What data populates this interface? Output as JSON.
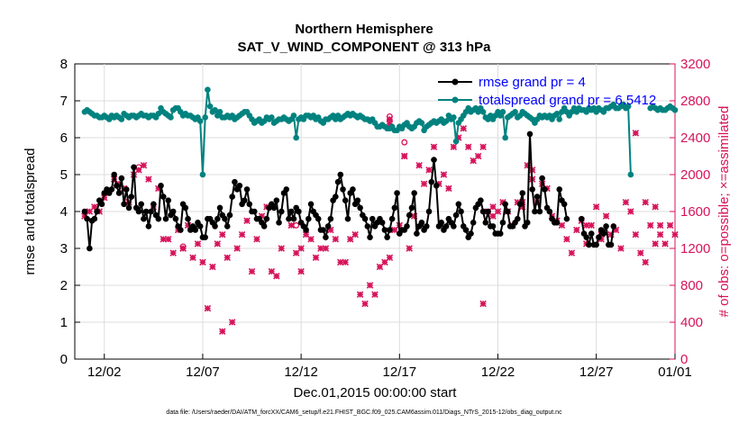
{
  "chart_data": {
    "type": "line",
    "title_line1": "Northern Hemisphere",
    "title_line2": "SAT_V_WIND_COMPONENT @ 313 hPa",
    "xlabel": "Dec.01,2015 00:00:00 start",
    "ylabel_left": "rmse and totalspread",
    "ylabel_right": "# of obs: o=possible; ×=assimilated",
    "footnote": "data file: /Users/raeder/DAI/ATM_forcXX/CAM6_setup/f.e21.FHIST_BGC.f09_025.CAM6assim.011/Diags_NTrS_2015-12/obs_diag_output.nc",
    "xlim": [
      0.5,
      31.0
    ],
    "ylim_left": [
      0,
      8
    ],
    "ylim_right": [
      0,
      3200
    ],
    "x_tick_values": [
      2,
      7,
      12,
      17,
      22,
      27,
      32
    ],
    "x_tick_labels": [
      "12/02",
      "12/07",
      "12/12",
      "12/17",
      "12/22",
      "12/27",
      "01/01"
    ],
    "y_left_ticks": [
      0,
      1,
      2,
      3,
      4,
      5,
      6,
      7,
      8
    ],
    "y_right_ticks": [
      0,
      400,
      800,
      1200,
      1600,
      2000,
      2400,
      2800,
      3200
    ],
    "colors": {
      "rmse": "#000000",
      "spread": "#00827f",
      "obs": "#d6135a",
      "legend_text": "#0000ff",
      "right_axis": "#d6135a"
    },
    "legend": [
      {
        "label": "rmse grand pr = 4",
        "series": "rmse"
      },
      {
        "label": "totalspread grand pr = 6.5412",
        "series": "spread"
      }
    ],
    "series": [
      {
        "name": "rmse",
        "values": [
          4.0,
          3.8,
          3.0,
          3.75,
          3.8,
          4.0,
          4.3,
          4.2,
          4.5,
          4.6,
          4.5,
          4.6,
          5.0,
          4.7,
          4.5,
          4.9,
          4.2,
          4.6,
          4.1,
          4.4,
          5.2,
          4.1,
          4.0,
          4.2,
          3.8,
          4.0,
          3.6,
          4.0,
          4.2,
          3.9,
          3.8,
          4.7,
          4.4,
          3.8,
          4.3,
          3.9,
          4.0,
          3.8,
          3.6,
          3.5,
          4.2,
          4.1,
          3.8,
          3.5,
          3.6,
          3.5,
          3.7,
          3.6,
          3.3,
          3.3,
          3.8,
          3.8,
          3.7,
          3.6,
          3.8,
          4.1,
          3.9,
          3.8,
          3.6,
          3.9,
          4.4,
          4.8,
          4.6,
          4.7,
          4.2,
          4.3,
          4.6,
          4.2,
          4.0,
          4.0,
          3.8,
          3.8,
          3.7,
          3.6,
          3.8,
          4.1,
          4.2,
          4.1,
          4.3,
          3.7,
          4.0,
          4.5,
          4.6,
          3.8,
          4.0,
          3.8,
          4.1,
          4.0,
          3.7,
          3.6,
          3.5,
          3.8,
          4.2,
          4.0,
          3.9,
          3.8,
          3.5,
          3.5,
          3.3,
          3.6,
          3.8,
          4.3,
          4.4,
          4.8,
          5.0,
          4.6,
          4.3,
          3.8,
          4.5,
          4.6,
          4.2,
          4.3,
          4.1,
          3.9,
          3.8,
          3.6,
          3.3,
          3.8,
          3.6,
          3.7,
          3.8,
          3.7,
          3.5,
          3.3,
          3.5,
          3.8,
          4.1,
          4.5,
          3.4,
          3.5,
          3.5,
          3.6,
          3.9,
          4.1,
          4.5,
          3.4,
          3.6,
          3.7,
          3.5,
          3.6,
          4.0,
          4.8,
          5.4,
          4.7,
          3.6,
          3.7,
          3.5,
          3.6,
          3.8,
          3.7,
          3.6,
          3.9,
          4.2,
          4.0,
          3.6,
          3.5,
          3.3,
          3.4,
          3.7,
          4.1,
          4.2,
          4.3,
          4.0,
          3.7,
          4.0,
          3.6,
          3.6,
          3.4,
          3.4,
          3.4,
          3.7,
          4.2,
          4.0,
          3.6,
          3.6,
          3.7,
          3.8,
          4.2,
          4.5,
          3.6,
          3.7,
          6.1,
          4.6,
          4.0,
          4.4,
          4.0,
          4.9,
          4.6,
          4.1,
          4.0,
          3.8,
          3.7,
          3.7,
          4.6,
          4.3,
          4.2,
          3.8,
          null,
          null,
          null,
          null,
          null,
          3.8,
          3.4,
          3.3,
          3.1,
          3.4,
          3.1,
          3.1,
          3.3,
          3.5,
          3.4,
          3.6,
          3.1,
          3.1,
          3.6
        ],
        "x_start": 1.0,
        "x_step": 0.125
      },
      {
        "name": "spread",
        "values": [
          6.7,
          6.75,
          6.7,
          6.65,
          6.6,
          6.6,
          6.55,
          6.55,
          6.6,
          6.55,
          6.5,
          6.6,
          6.55,
          6.6,
          6.55,
          6.5,
          6.65,
          6.6,
          6.55,
          6.6,
          6.6,
          6.55,
          6.6,
          6.65,
          6.6,
          6.6,
          6.55,
          6.6,
          6.6,
          6.55,
          6.65,
          6.8,
          6.7,
          6.65,
          6.6,
          6.55,
          6.75,
          6.8,
          6.8,
          6.7,
          6.6,
          6.65,
          6.6,
          6.6,
          6.55,
          6.5,
          6.55,
          6.45,
          5.0,
          6.55,
          7.3,
          6.85,
          6.7,
          6.75,
          6.6,
          6.7,
          6.55,
          6.55,
          6.6,
          6.55,
          6.6,
          6.5,
          6.55,
          6.6,
          6.65,
          6.7,
          6.7,
          6.6,
          6.5,
          6.4,
          6.45,
          6.5,
          6.4,
          6.45,
          6.55,
          6.5,
          6.55,
          6.4,
          6.45,
          6.5,
          6.5,
          6.55,
          6.5,
          6.45,
          6.5,
          6.6,
          6.0,
          6.5,
          6.55,
          6.5,
          6.6,
          6.6,
          6.55,
          6.6,
          6.5,
          6.55,
          6.45,
          6.4,
          6.5,
          6.5,
          6.55,
          6.6,
          6.5,
          6.6,
          6.5,
          6.55,
          6.6,
          6.65,
          6.6,
          6.65,
          6.6,
          6.55,
          6.6,
          6.55,
          6.5,
          6.5,
          6.45,
          6.5,
          6.4,
          6.3,
          6.3,
          6.35,
          6.3,
          6.25,
          6.25,
          6.3,
          6.2,
          6.2,
          6.3,
          6.25,
          6.35,
          6.4,
          6.3,
          6.25,
          6.3,
          6.4,
          6.45,
          6.4,
          6.2,
          6.3,
          6.35,
          6.4,
          6.45,
          6.4,
          6.45,
          6.5,
          6.4,
          6.45,
          6.6,
          6.5,
          6.55,
          5.9,
          6.4,
          6.5,
          6.6,
          6.7,
          6.8,
          6.7,
          6.75,
          6.8,
          6.7,
          6.8,
          6.7,
          6.55,
          6.5,
          6.6,
          6.5,
          6.6,
          6.7,
          6.6,
          6.7,
          6.0,
          6.55,
          6.6,
          6.65,
          6.7,
          6.55,
          6.6,
          6.7,
          6.65,
          6.6,
          6.55,
          6.5,
          6.4,
          6.5,
          6.6,
          6.55,
          6.6,
          6.55,
          6.6,
          6.5,
          6.6,
          6.65,
          6.5,
          6.7,
          6.8,
          6.7,
          6.6,
          6.7,
          6.8,
          6.7,
          6.8,
          6.75,
          6.75,
          6.7,
          6.8,
          6.75,
          6.8,
          6.7,
          6.8,
          6.75,
          6.7,
          6.8,
          6.8,
          6.85,
          6.9,
          6.8,
          6.8,
          6.85,
          6.9,
          6.8,
          6.85,
          5.0,
          null,
          null,
          null,
          null,
          null,
          null,
          null,
          6.8,
          6.85,
          6.8,
          6.75,
          6.8,
          6.75,
          6.75,
          6.8,
          6.85,
          6.8,
          6.75,
          6.8,
          6.8
        ],
        "x_start": 1.0,
        "x_step": 0.125
      }
    ],
    "obs_assimilated": [
      [
        1.0,
        1550
      ],
      [
        1.25,
        1600
      ],
      [
        1.5,
        1650
      ],
      [
        1.75,
        1600
      ],
      [
        2.0,
        1750
      ],
      [
        2.5,
        1950
      ],
      [
        2.75,
        1900
      ],
      [
        3.0,
        1850
      ],
      [
        3.25,
        1700
      ],
      [
        3.5,
        2000
      ],
      [
        3.75,
        2050
      ],
      [
        4.0,
        2100
      ],
      [
        4.25,
        1950
      ],
      [
        4.5,
        1650
      ],
      [
        4.75,
        1850
      ],
      [
        5.0,
        1300
      ],
      [
        5.25,
        1300
      ],
      [
        5.5,
        1150
      ],
      [
        5.75,
        1400
      ],
      [
        6.0,
        1200
      ],
      [
        6.25,
        1450
      ],
      [
        6.5,
        1100
      ],
      [
        6.75,
        1250
      ],
      [
        7.0,
        1050
      ],
      [
        7.25,
        550
      ],
      [
        7.5,
        1000
      ],
      [
        7.75,
        1250
      ],
      [
        8.0,
        1350
      ],
      [
        8.25,
        1100
      ],
      [
        8.5,
        400
      ],
      [
        8.75,
        1200
      ],
      [
        9.0,
        1350
      ],
      [
        9.25,
        1500
      ],
      [
        9.5,
        950
      ],
      [
        9.75,
        1300
      ],
      [
        10.0,
        1550
      ],
      [
        10.25,
        1650
      ],
      [
        10.5,
        950
      ],
      [
        10.75,
        900
      ],
      [
        11.0,
        1200
      ],
      [
        11.5,
        1450
      ],
      [
        11.75,
        1150
      ],
      [
        12.0,
        1200
      ],
      [
        12.25,
        1350
      ],
      [
        12.5,
        1300
      ],
      [
        12.75,
        1100
      ],
      [
        13.0,
        1200
      ],
      [
        13.25,
        1200
      ],
      [
        13.5,
        1400
      ],
      [
        13.75,
        1300
      ],
      [
        14.0,
        1050
      ],
      [
        14.25,
        1050
      ],
      [
        14.5,
        1300
      ],
      [
        14.75,
        1350
      ],
      [
        15.0,
        700
      ],
      [
        15.25,
        600
      ],
      [
        15.5,
        800
      ],
      [
        15.75,
        700
      ],
      [
        16.0,
        1000
      ],
      [
        16.25,
        1050
      ],
      [
        16.5,
        1100
      ],
      [
        16.75,
        1400
      ],
      [
        17.0,
        1450
      ],
      [
        17.25,
        2200
      ],
      [
        17.5,
        1200
      ],
      [
        17.75,
        1550
      ],
      [
        18.0,
        2100
      ],
      [
        18.25,
        1900
      ],
      [
        18.5,
        2050
      ],
      [
        18.75,
        2300
      ],
      [
        19.0,
        1900
      ],
      [
        19.25,
        2000
      ],
      [
        19.5,
        1850
      ],
      [
        19.75,
        2300
      ],
      [
        20.0,
        2400
      ],
      [
        20.25,
        2500
      ],
      [
        20.5,
        2300
      ],
      [
        20.75,
        2150
      ],
      [
        21.0,
        2200
      ],
      [
        21.25,
        2300
      ],
      [
        21.5,
        1600
      ],
      [
        21.75,
        1650
      ],
      [
        22.0,
        1600
      ],
      [
        22.25,
        1700
      ],
      [
        22.5,
        1600
      ],
      [
        22.75,
        1450
      ],
      [
        23.0,
        1700
      ],
      [
        23.25,
        1650
      ],
      [
        23.5,
        2100
      ],
      [
        23.75,
        2050
      ],
      [
        24.0,
        1700
      ],
      [
        24.25,
        1900
      ],
      [
        24.5,
        1850
      ],
      [
        24.75,
        1550
      ],
      [
        25.0,
        1500
      ],
      [
        25.25,
        1450
      ],
      [
        25.5,
        1300
      ],
      [
        25.75,
        1150
      ],
      [
        26.0,
        1400
      ],
      [
        26.25,
        1500
      ],
      [
        26.5,
        1450
      ],
      [
        26.75,
        1450
      ],
      [
        27.0,
        1650
      ],
      [
        27.25,
        1350
      ],
      [
        27.5,
        1550
      ],
      [
        27.75,
        1350
      ],
      [
        28.0,
        1400
      ],
      [
        28.25,
        1200
      ],
      [
        28.5,
        1700
      ],
      [
        28.75,
        1600
      ],
      [
        29.0,
        1350
      ],
      [
        29.25,
        1150
      ],
      [
        29.5,
        1050
      ],
      [
        29.75,
        1450
      ],
      [
        30.0,
        1650
      ],
      [
        30.25,
        1350
      ],
      [
        30.5,
        1250
      ],
      [
        30.75,
        1450
      ],
      [
        31.0,
        1350
      ],
      [
        31.25,
        1200
      ],
      [
        31.5,
        1300
      ],
      [
        31.75,
        1300
      ],
      [
        32.0,
        1200
      ],
      [
        32.25,
        1450
      ],
      [
        32.5,
        1250
      ],
      [
        32.75,
        1150
      ],
      [
        16.5,
        2550
      ],
      [
        16.5,
        2600
      ],
      [
        17.25,
        2200
      ],
      [
        21.75,
        1550
      ],
      [
        23.25,
        1700
      ],
      [
        29.0,
        2450
      ],
      [
        29.5,
        1700
      ],
      [
        30.0,
        1250
      ],
      [
        30.25,
        1450
      ],
      [
        31.5,
        1300
      ],
      [
        31.25,
        1150
      ],
      [
        31.75,
        1150
      ],
      [
        32.25,
        1400
      ],
      [
        23.75,
        1950
      ],
      [
        8.0,
        300
      ],
      [
        6.0,
        1200
      ],
      [
        26.5,
        1250
      ],
      [
        27.25,
        1300
      ],
      [
        12.0,
        950
      ],
      [
        21.25,
        600
      ]
    ],
    "obs_possible": [
      [
        3.75,
        2080
      ],
      [
        16.5,
        2630
      ],
      [
        16.5,
        2590
      ],
      [
        17.25,
        2350
      ],
      [
        6.0,
        1220
      ],
      [
        11.75,
        1450
      ]
    ]
  }
}
